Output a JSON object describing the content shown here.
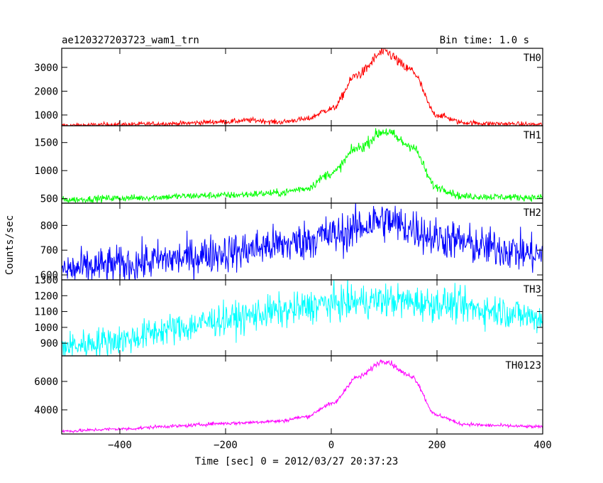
{
  "header": {
    "title": "ae120327203723_wam1_trn",
    "bin_time": "Bin time: 1.0 s"
  },
  "axes": {
    "xlabel": "Time [sec] 0 = 2012/03/27 20:37:23",
    "ylabel": "Counts/sec"
  },
  "chart_data": {
    "type": "line",
    "x_range": [
      -510,
      400
    ],
    "x_ticks": [
      -400,
      -200,
      0,
      200,
      400
    ],
    "x_tick_labels": [
      "−400",
      "−200",
      "0",
      "200",
      "400"
    ],
    "grid": false,
    "panels": [
      {
        "label": "TH0",
        "color": "#ff0000",
        "ylim": [
          550,
          3800
        ],
        "yticks": [
          1000,
          2000,
          3000
        ],
        "ytick_labels": [
          "1000",
          "2000",
          "3000"
        ],
        "knots": [
          [
            -510,
            560
          ],
          [
            -400,
            600
          ],
          [
            -300,
            640
          ],
          [
            -200,
            720
          ],
          [
            -150,
            780
          ],
          [
            -100,
            700
          ],
          [
            -50,
            820
          ],
          [
            0,
            1250
          ],
          [
            50,
            2700
          ],
          [
            100,
            3650
          ],
          [
            150,
            2900
          ],
          [
            200,
            1000
          ],
          [
            250,
            680
          ],
          [
            300,
            640
          ],
          [
            400,
            600
          ]
        ],
        "noise": 50,
        "noise_ref": 600
      },
      {
        "label": "TH1",
        "color": "#00ff00",
        "ylim": [
          420,
          1800
        ],
        "yticks": [
          500,
          1000,
          1500
        ],
        "ytick_labels": [
          "500",
          "1000",
          "1500"
        ],
        "knots": [
          [
            -510,
            480
          ],
          [
            -400,
            510
          ],
          [
            -200,
            560
          ],
          [
            -100,
            600
          ],
          [
            -50,
            680
          ],
          [
            0,
            950
          ],
          [
            50,
            1400
          ],
          [
            100,
            1700
          ],
          [
            150,
            1450
          ],
          [
            200,
            700
          ],
          [
            250,
            540
          ],
          [
            400,
            520
          ]
        ],
        "noise": 30,
        "noise_ref": 500
      },
      {
        "label": "TH2",
        "color": "#0000ff",
        "ylim": [
          580,
          890
        ],
        "yticks": [
          600,
          700,
          800
        ],
        "ytick_labels": [
          "600",
          "700",
          "800"
        ],
        "knots": [
          [
            -510,
            620
          ],
          [
            -400,
            640
          ],
          [
            -300,
            665
          ],
          [
            -200,
            690
          ],
          [
            -100,
            720
          ],
          [
            0,
            760
          ],
          [
            100,
            820
          ],
          [
            150,
            790
          ],
          [
            200,
            750
          ],
          [
            300,
            710
          ],
          [
            400,
            680
          ]
        ],
        "noise": 40,
        "noise_ref": 700
      },
      {
        "label": "TH3",
        "color": "#00ffff",
        "ylim": [
          820,
          1300
        ],
        "yticks": [
          900,
          1000,
          1100,
          1200,
          1300
        ],
        "ytick_labels": [
          "900",
          "1000",
          "1100",
          "1200",
          "1300"
        ],
        "knots": [
          [
            -510,
            880
          ],
          [
            -400,
            920
          ],
          [
            -300,
            990
          ],
          [
            -200,
            1050
          ],
          [
            -100,
            1100
          ],
          [
            0,
            1150
          ],
          [
            100,
            1170
          ],
          [
            200,
            1150
          ],
          [
            300,
            1110
          ],
          [
            400,
            1060
          ]
        ],
        "noise": 50,
        "noise_ref": 1000
      },
      {
        "label": "TH0123",
        "color": "#ff00ff",
        "ylim": [
          2300,
          7800
        ],
        "yticks": [
          4000,
          6000
        ],
        "ytick_labels": [
          "4000",
          "6000"
        ],
        "knots": [
          [
            -510,
            2500
          ],
          [
            -400,
            2650
          ],
          [
            -300,
            2850
          ],
          [
            -200,
            3050
          ],
          [
            -100,
            3200
          ],
          [
            -50,
            3500
          ],
          [
            0,
            4400
          ],
          [
            50,
            6300
          ],
          [
            100,
            7450
          ],
          [
            150,
            6400
          ],
          [
            200,
            3600
          ],
          [
            250,
            3000
          ],
          [
            300,
            2900
          ],
          [
            400,
            2800
          ]
        ],
        "noise": 60,
        "noise_ref": 2800
      }
    ]
  }
}
